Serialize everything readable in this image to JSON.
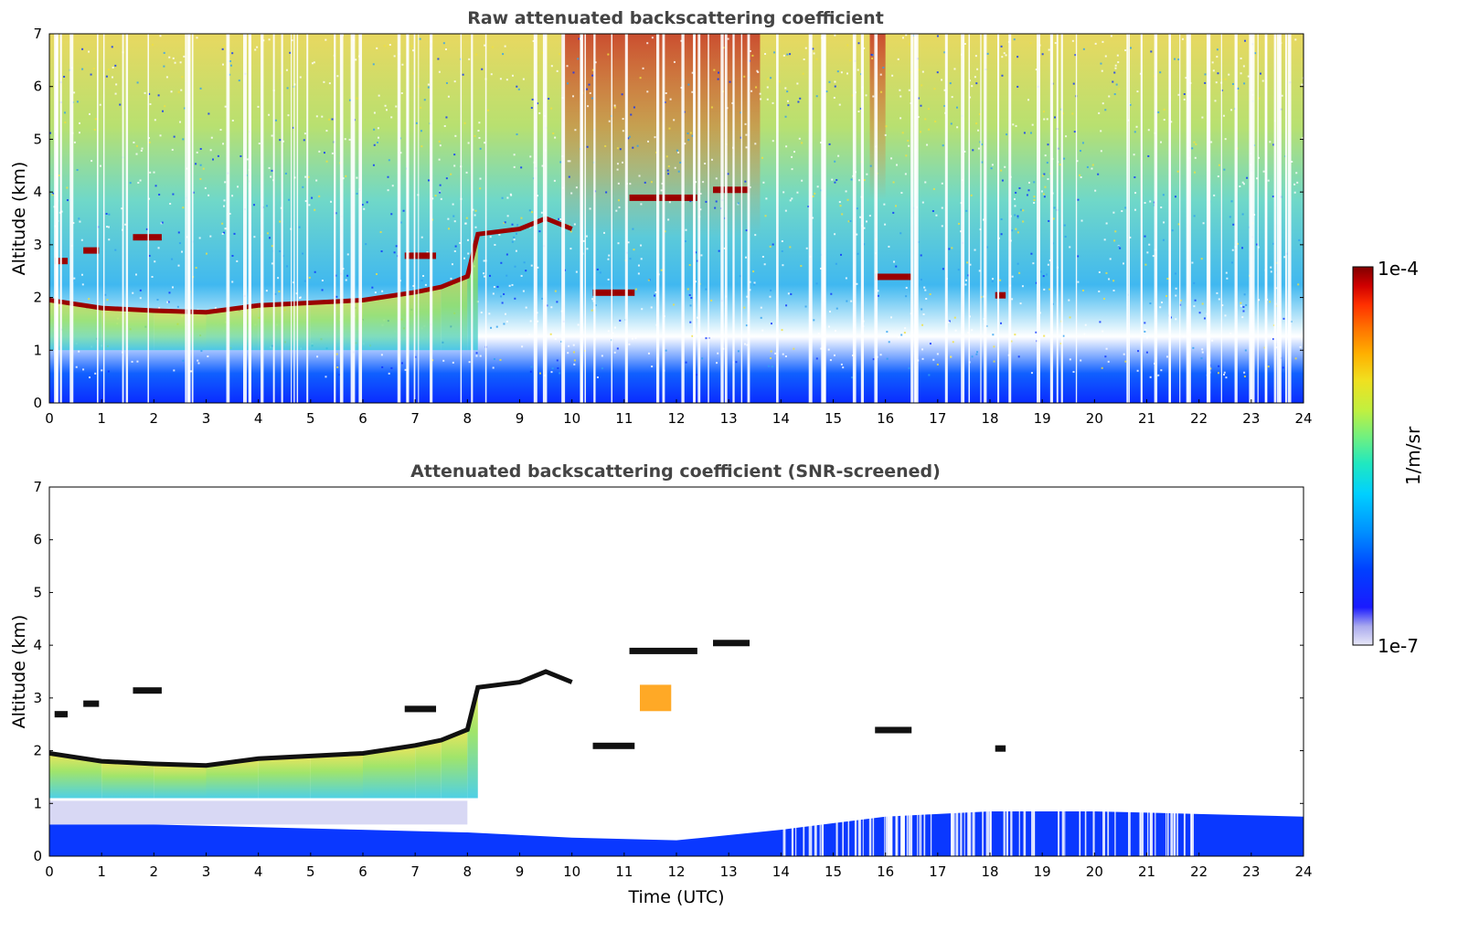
{
  "chart_data": [
    {
      "type": "heatmap",
      "title": "Raw attenuated backscattering coefficient",
      "ylabel": "Altitude (km)",
      "xlabel": "",
      "xlim": [
        0,
        24
      ],
      "ylim": [
        0,
        7
      ],
      "x_ticks": [
        "0",
        "1",
        "2",
        "3",
        "4",
        "5",
        "6",
        "7",
        "8",
        "9",
        "10",
        "11",
        "12",
        "13",
        "14",
        "15",
        "16",
        "17",
        "18",
        "19",
        "20",
        "21",
        "22",
        "23",
        "24"
      ],
      "y_ticks": [
        "0",
        "1",
        "2",
        "3",
        "4",
        "5",
        "6",
        "7"
      ],
      "grid": false,
      "features": {
        "boundary_layer_top": [
          [
            0,
            1.95
          ],
          [
            1,
            1.8
          ],
          [
            2,
            1.75
          ],
          [
            3,
            1.72
          ],
          [
            4,
            1.85
          ],
          [
            5,
            1.9
          ],
          [
            6,
            1.95
          ],
          [
            7,
            2.1
          ],
          [
            7.5,
            2.2
          ],
          [
            8,
            2.4
          ],
          [
            8.2,
            3.2
          ],
          [
            9,
            3.3
          ],
          [
            9.5,
            3.5
          ],
          [
            10,
            3.3
          ]
        ],
        "elevated_layers": [
          {
            "x": [
              0.1,
              0.35
            ],
            "y": 2.7
          },
          {
            "x": [
              0.65,
              0.95
            ],
            "y": 2.9
          },
          {
            "x": [
              1.6,
              2.15
            ],
            "y": 3.15
          },
          {
            "x": [
              6.8,
              7.4
            ],
            "y": 2.8
          },
          {
            "x": [
              10.4,
              11.2
            ],
            "y": 2.1
          },
          {
            "x": [
              11.1,
              12.4
            ],
            "y": 3.9
          },
          {
            "x": [
              12.7,
              13.4
            ],
            "y": 4.05
          },
          {
            "x": [
              15.8,
              16.5
            ],
            "y": 2.4
          },
          {
            "x": [
              18.1,
              18.3
            ],
            "y": 2.05
          }
        ]
      }
    },
    {
      "type": "heatmap",
      "title": "Attenuated backscattering coefficient (SNR-screened)",
      "ylabel": "Altitude (km)",
      "xlabel": "Time (UTC)",
      "xlim": [
        0,
        24
      ],
      "ylim": [
        0,
        7
      ],
      "x_ticks": [
        "0",
        "1",
        "2",
        "3",
        "4",
        "5",
        "6",
        "7",
        "8",
        "9",
        "10",
        "11",
        "12",
        "13",
        "14",
        "15",
        "16",
        "17",
        "18",
        "19",
        "20",
        "21",
        "22",
        "23",
        "24"
      ],
      "y_ticks": [
        "0",
        "1",
        "2",
        "3",
        "4",
        "5",
        "6",
        "7"
      ],
      "grid": false
    }
  ],
  "colorbar": {
    "label": "1/m/sr",
    "max_label": "1e-4",
    "min_label": "1e-7",
    "scale": "log",
    "range": [
      1e-07,
      0.0001
    ],
    "colors": [
      "#e8e8f8",
      "#aaaaee",
      "#1a1aff",
      "#0040ff",
      "#0090ff",
      "#00d0ff",
      "#20e8c0",
      "#70f080",
      "#c0f040",
      "#f0e020",
      "#ffb000",
      "#ff7000",
      "#ff3000",
      "#d00000",
      "#800000"
    ]
  }
}
